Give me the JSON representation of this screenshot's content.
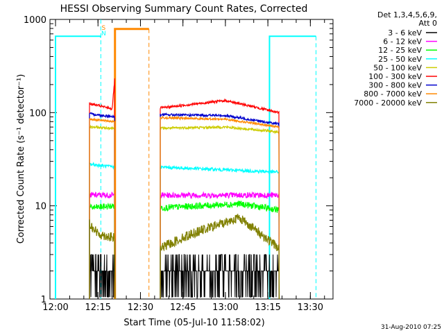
{
  "chart_data": {
    "type": "line",
    "title": "HESSI Observing Summary Count Rates, Corrected",
    "xlabel": "Start Time (05-Jul-10 11:58:02)",
    "ylabel": "Corrected Count Rate (s⁻¹ detector⁻¹)",
    "x_ticks": [
      "12:00",
      "12:15",
      "12:30",
      "12:45",
      "13:00",
      "13:15",
      "13:30"
    ],
    "y_ticks": [
      "1",
      "10",
      "100",
      "1000"
    ],
    "y_scale": "log",
    "xlim": [
      "11:58:02",
      "13:38:00"
    ],
    "ylim": [
      1,
      1000
    ],
    "grid": false,
    "legend": {
      "placement": "right",
      "header": [
        "Det 1,3,4,5,6,9,",
        "Att 0"
      ],
      "entries": [
        {
          "label": "3 - 6 keV",
          "color": "#000000"
        },
        {
          "label": "6 - 12 keV",
          "color": "#ff00ff"
        },
        {
          "label": "12 - 25 keV",
          "color": "#00ff00"
        },
        {
          "label": "25 - 50 keV",
          "color": "#00ffff"
        },
        {
          "label": "50 - 100 keV",
          "color": "#cccc00"
        },
        {
          "label": "100 - 300 keV",
          "color": "#ff0000"
        },
        {
          "label": "300 - 800 keV",
          "color": "#0000cc"
        },
        {
          "label": "800 - 7000 keV",
          "color": "#ff8800"
        },
        {
          "label": "7000 - 20000 keV",
          "color": "#808000"
        }
      ]
    },
    "segments": [
      {
        "start": "12:12",
        "end": "12:21"
      },
      {
        "start": "12:37",
        "end": "13:19"
      }
    ],
    "series": [
      {
        "name": "3 - 6 keV",
        "color": "#000000",
        "levels": [
          {
            "x": [
              "12:12",
              "12:21"
            ],
            "y": [
              2.0,
              2.0
            ],
            "noise": 0.5
          },
          {
            "x": [
              "12:37",
              "13:19"
            ],
            "y": [
              1.8,
              1.8
            ],
            "noise": 0.5
          }
        ]
      },
      {
        "name": "6 - 12 keV",
        "color": "#ff00ff",
        "levels": [
          {
            "x": [
              "12:12",
              "12:21"
            ],
            "y": [
              13,
              13
            ],
            "noise": 0.07
          },
          {
            "x": [
              "12:37",
              "13:19"
            ],
            "y": [
              13,
              13
            ],
            "noise": 0.07
          }
        ]
      },
      {
        "name": "12 - 25 keV",
        "color": "#00ff00",
        "levels": [
          {
            "x": [
              "12:12",
              "12:21"
            ],
            "y": [
              9.5,
              10.0
            ],
            "noise": 0.08
          },
          {
            "x": [
              "12:37",
              "13:05",
              "13:19"
            ],
            "y": [
              9.5,
              10.5,
              9.0
            ],
            "noise": 0.08
          }
        ]
      },
      {
        "name": "25 - 50 keV",
        "color": "#00ffff",
        "levels": [
          {
            "x": [
              "12:12",
              "12:21"
            ],
            "y": [
              28,
              26
            ],
            "noise": 0.04
          },
          {
            "x": [
              "12:37",
              "13:19"
            ],
            "y": [
              26,
              23
            ],
            "noise": 0.04
          }
        ]
      },
      {
        "name": "50 - 100 keV",
        "color": "#cccc00",
        "levels": [
          {
            "x": [
              "12:12",
              "12:21"
            ],
            "y": [
              70,
              68
            ],
            "noise": 0.03
          },
          {
            "x": [
              "12:37",
              "13:00",
              "13:19"
            ],
            "y": [
              68,
              70,
              62
            ],
            "noise": 0.03
          }
        ]
      },
      {
        "name": "100 - 300 keV",
        "color": "#ff0000",
        "levels": [
          {
            "x": [
              "12:12",
              "12:20",
              "12:21"
            ],
            "y": [
              125,
              110,
              250
            ],
            "noise": 0.03
          },
          {
            "x": [
              "12:37",
              "13:00",
              "13:19"
            ],
            "y": [
              112,
              135,
              100
            ],
            "noise": 0.03
          }
        ]
      },
      {
        "name": "300 - 800 keV",
        "color": "#0000cc",
        "levels": [
          {
            "x": [
              "12:12",
              "12:21"
            ],
            "y": [
              97,
              90
            ],
            "noise": 0.03
          },
          {
            "x": [
              "12:37",
              "13:00",
              "13:19"
            ],
            "y": [
              95,
              93,
              75
            ],
            "noise": 0.03
          }
        ]
      },
      {
        "name": "800 - 7000 keV",
        "color": "#ff8800",
        "levels": [
          {
            "x": [
              "12:12",
              "12:21"
            ],
            "y": [
              85,
              80
            ],
            "noise": 0.025
          },
          {
            "x": [
              "12:37",
              "13:00",
              "13:19"
            ],
            "y": [
              88,
              85,
              70
            ],
            "noise": 0.025
          }
        ]
      },
      {
        "name": "7000 - 20000 keV",
        "color": "#808000",
        "levels": [
          {
            "x": [
              "12:12",
              "12:15",
              "12:21"
            ],
            "y": [
              6.5,
              5.0,
              4.5
            ],
            "noise": 0.12
          },
          {
            "x": [
              "12:37",
              "12:48",
              "13:05",
              "13:19"
            ],
            "y": [
              3.5,
              5.0,
              7.5,
              3.5
            ],
            "noise": 0.12
          }
        ]
      }
    ],
    "saa_level": 660,
    "saa_color": "#00ffff",
    "night_color": "#ff8800",
    "flags": [
      {
        "label": "S",
        "color": "#ff8800"
      },
      {
        "label": "N",
        "color": "#00ffff"
      }
    ],
    "timestamp": "31-Aug-2010 07:25"
  }
}
